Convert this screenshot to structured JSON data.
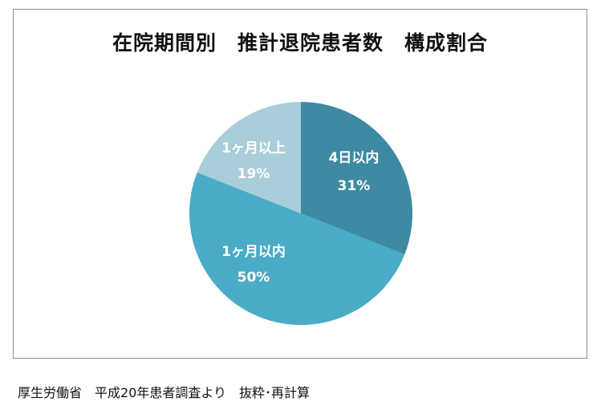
{
  "chart_data": {
    "type": "pie",
    "title": "在院期間別　推計退院患者数　構成割合",
    "start_angle_deg": 0,
    "direction": "clockwise",
    "slices": [
      {
        "label": "4日以内",
        "value": 31,
        "value_label": "31%",
        "color": "#3d8aa2"
      },
      {
        "label": "1ヶ月以内",
        "value": 50,
        "value_label": "50%",
        "color": "#4aacc6"
      },
      {
        "label": "1ヶ月以上",
        "value": 19,
        "value_label": "19%",
        "color": "#a9ceda"
      }
    ]
  },
  "source_note": "厚生労働省　平成20年患者調査より　抜粋･再計算"
}
